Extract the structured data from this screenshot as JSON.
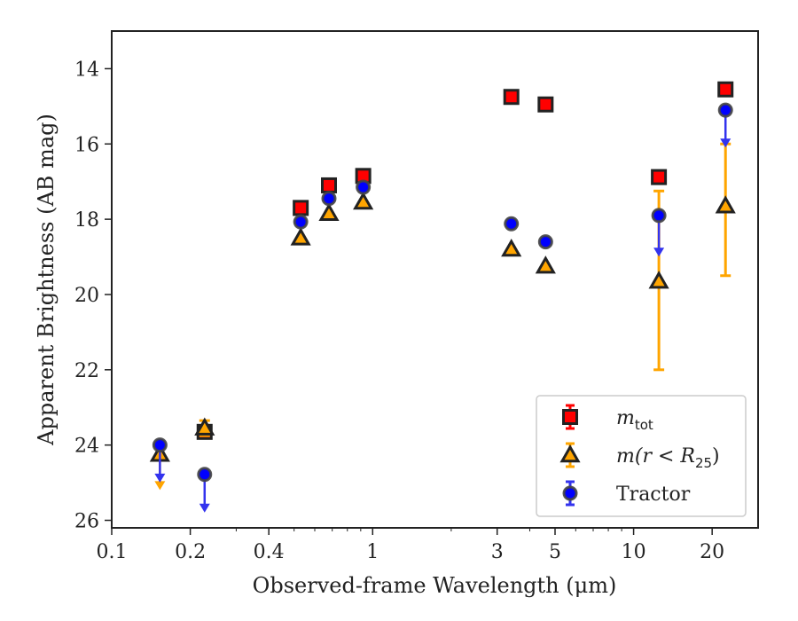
{
  "chart_data": {
    "type": "scatter",
    "xlabel": "Observed-frame Wavelength (μm)",
    "ylabel": "Apparent Brightness (AB mag)",
    "x_scale": "log",
    "y_inverted": true,
    "xlim": [
      0.1,
      30
    ],
    "ylim": [
      26.2,
      13.0
    ],
    "x_ticks": [
      {
        "value": 0.1,
        "label": "0.1"
      },
      {
        "value": 0.2,
        "label": "0.2"
      },
      {
        "value": 0.4,
        "label": "0.4"
      },
      {
        "value": 1,
        "label": "1"
      },
      {
        "value": 3,
        "label": "3"
      },
      {
        "value": 5,
        "label": "5"
      },
      {
        "value": 10,
        "label": "10"
      },
      {
        "value": 20,
        "label": "20"
      }
    ],
    "y_ticks": [
      {
        "value": 14,
        "label": "14"
      },
      {
        "value": 16,
        "label": "16"
      },
      {
        "value": 18,
        "label": "18"
      },
      {
        "value": 20,
        "label": "20"
      },
      {
        "value": 22,
        "label": "22"
      },
      {
        "value": 24,
        "label": "24"
      },
      {
        "value": 26,
        "label": "26"
      }
    ],
    "grid": false,
    "legend_position": "bottom-right",
    "series": [
      {
        "name": "m_tot",
        "marker": "square",
        "color": "#ff0000",
        "edge": "#222222",
        "points": [
          {
            "x": 0.227,
            "y": 23.65
          },
          {
            "x": 0.53,
            "y": 17.7
          },
          {
            "x": 0.68,
            "y": 17.1
          },
          {
            "x": 0.92,
            "y": 16.85
          },
          {
            "x": 3.4,
            "y": 14.75
          },
          {
            "x": 4.6,
            "y": 14.95
          },
          {
            "x": 12.5,
            "y": 16.88
          },
          {
            "x": 22.5,
            "y": 14.55
          }
        ]
      },
      {
        "name": "m(r<R25)",
        "marker": "triangle",
        "color": "#ffa500",
        "edge": "#222222",
        "points": [
          {
            "x": 0.153,
            "y": 24.25,
            "upper_limit": true,
            "limit_to": 25.1
          },
          {
            "x": 0.227,
            "y": 23.55,
            "err": 0.2
          },
          {
            "x": 0.53,
            "y": 18.5
          },
          {
            "x": 0.68,
            "y": 17.85
          },
          {
            "x": 0.92,
            "y": 17.55
          },
          {
            "x": 3.4,
            "y": 18.8
          },
          {
            "x": 4.6,
            "y": 19.25
          },
          {
            "x": 12.5,
            "y": 19.65,
            "err_low": 17.25,
            "err_high": 22.0
          },
          {
            "x": 22.5,
            "y": 17.65,
            "err_low": 16.0,
            "err_high": 19.5
          }
        ]
      },
      {
        "name": "Tractor",
        "marker": "circle",
        "color": "#0000ff",
        "edge": "#444444",
        "points": [
          {
            "x": 0.153,
            "y": 24.0,
            "upper_limit": true,
            "limit_to": 24.9
          },
          {
            "x": 0.227,
            "y": 24.78,
            "upper_limit": true,
            "limit_to": 25.7
          },
          {
            "x": 0.53,
            "y": 18.07
          },
          {
            "x": 0.68,
            "y": 17.45
          },
          {
            "x": 0.92,
            "y": 17.15
          },
          {
            "x": 3.4,
            "y": 18.12
          },
          {
            "x": 4.6,
            "y": 18.6
          },
          {
            "x": 12.5,
            "y": 17.9,
            "upper_limit": true,
            "limit_to": 18.9
          },
          {
            "x": 22.5,
            "y": 15.1,
            "upper_limit": true,
            "limit_to": 16.0
          }
        ]
      }
    ]
  },
  "legend": {
    "entries": [
      {
        "label_main": "m",
        "label_sub": "tot"
      },
      {
        "label_main": "m(r < R",
        "label_sub": "25",
        "label_tail": ")"
      },
      {
        "label_main": "Tractor",
        "label_sub": "",
        "label_tail": ""
      }
    ]
  }
}
